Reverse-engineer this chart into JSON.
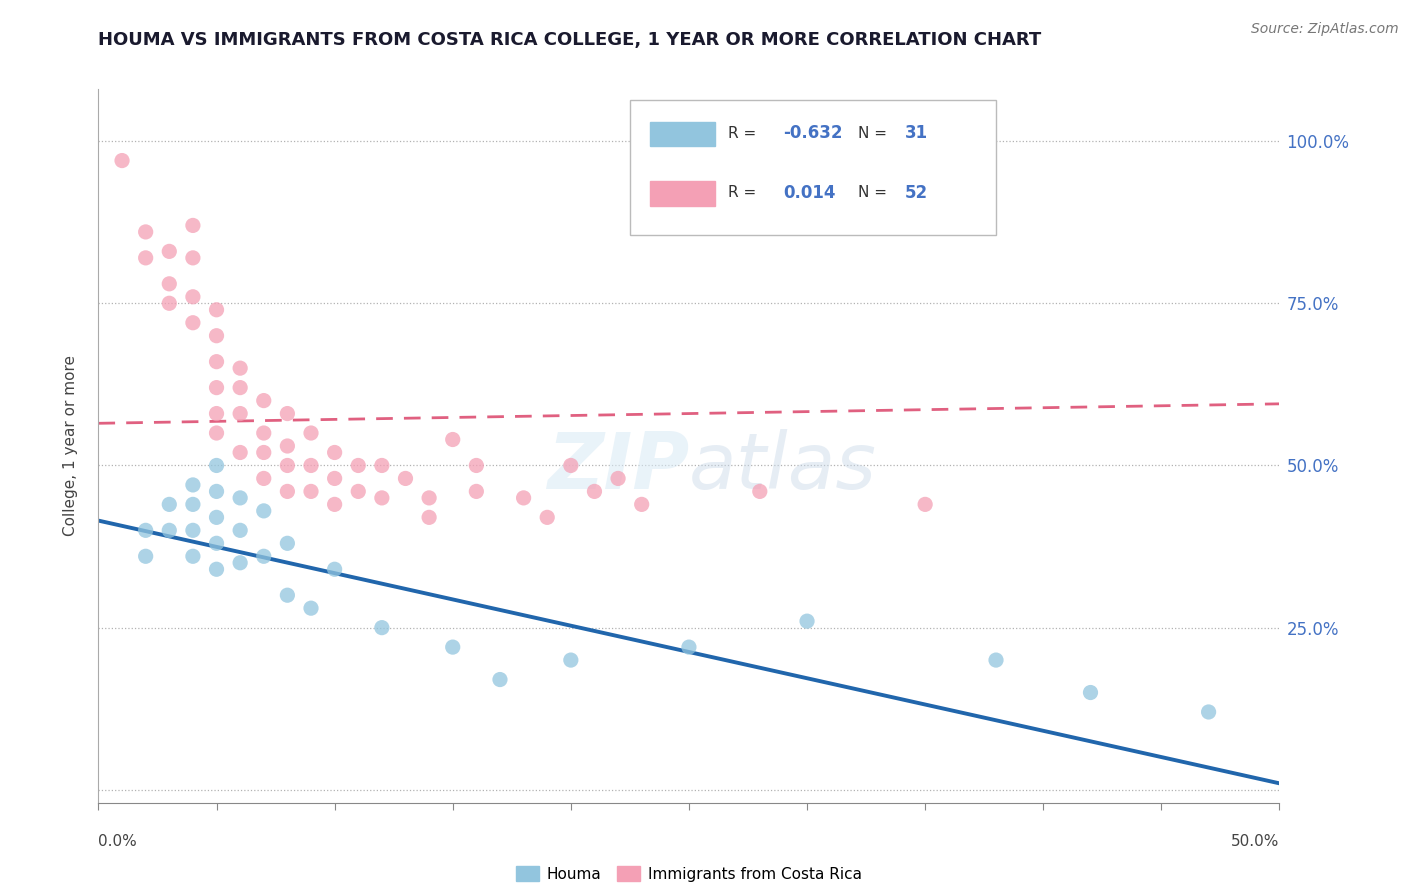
{
  "title": "HOUMA VS IMMIGRANTS FROM COSTA RICA COLLEGE, 1 YEAR OR MORE CORRELATION CHART",
  "source": "Source: ZipAtlas.com",
  "ylabel": "College, 1 year or more",
  "yticks": [
    0.0,
    0.25,
    0.5,
    0.75,
    1.0
  ],
  "ytick_labels": [
    "",
    "25.0%",
    "50.0%",
    "75.0%",
    "100.0%"
  ],
  "xlim": [
    0.0,
    0.5
  ],
  "ylim": [
    -0.02,
    1.08
  ],
  "houma_color": "#92c5de",
  "immigrants_color": "#f4a0b5",
  "houma_line_color": "#2166ac",
  "immigrants_line_color": "#e06080",
  "background_color": "#ffffff",
  "houma_x": [
    0.02,
    0.02,
    0.03,
    0.03,
    0.04,
    0.04,
    0.04,
    0.04,
    0.05,
    0.05,
    0.05,
    0.05,
    0.05,
    0.06,
    0.06,
    0.06,
    0.07,
    0.07,
    0.08,
    0.08,
    0.09,
    0.1,
    0.12,
    0.15,
    0.17,
    0.2,
    0.25,
    0.3,
    0.38,
    0.42,
    0.47
  ],
  "houma_y": [
    0.4,
    0.36,
    0.44,
    0.4,
    0.47,
    0.44,
    0.4,
    0.36,
    0.5,
    0.46,
    0.42,
    0.38,
    0.34,
    0.45,
    0.4,
    0.35,
    0.43,
    0.36,
    0.38,
    0.3,
    0.28,
    0.34,
    0.25,
    0.22,
    0.17,
    0.2,
    0.22,
    0.26,
    0.2,
    0.15,
    0.12
  ],
  "immigrants_x": [
    0.01,
    0.02,
    0.02,
    0.03,
    0.03,
    0.03,
    0.04,
    0.04,
    0.04,
    0.04,
    0.05,
    0.05,
    0.05,
    0.05,
    0.05,
    0.05,
    0.06,
    0.06,
    0.06,
    0.06,
    0.07,
    0.07,
    0.07,
    0.07,
    0.08,
    0.08,
    0.08,
    0.08,
    0.09,
    0.09,
    0.09,
    0.1,
    0.1,
    0.1,
    0.11,
    0.11,
    0.12,
    0.12,
    0.13,
    0.14,
    0.14,
    0.15,
    0.16,
    0.16,
    0.18,
    0.19,
    0.2,
    0.21,
    0.22,
    0.23,
    0.28,
    0.35
  ],
  "immigrants_y": [
    0.97,
    0.86,
    0.82,
    0.83,
    0.78,
    0.75,
    0.87,
    0.82,
    0.76,
    0.72,
    0.74,
    0.7,
    0.66,
    0.62,
    0.58,
    0.55,
    0.65,
    0.62,
    0.58,
    0.52,
    0.6,
    0.55,
    0.52,
    0.48,
    0.58,
    0.53,
    0.5,
    0.46,
    0.55,
    0.5,
    0.46,
    0.52,
    0.48,
    0.44,
    0.5,
    0.46,
    0.5,
    0.45,
    0.48,
    0.45,
    0.42,
    0.54,
    0.5,
    0.46,
    0.45,
    0.42,
    0.5,
    0.46,
    0.48,
    0.44,
    0.46,
    0.44
  ],
  "houma_line_x0": 0.0,
  "houma_line_y0": 0.415,
  "houma_line_x1": 0.5,
  "houma_line_y1": 0.01,
  "immigrants_line_x0": 0.0,
  "immigrants_line_y0": 0.565,
  "immigrants_line_x1": 0.5,
  "immigrants_line_y1": 0.595
}
